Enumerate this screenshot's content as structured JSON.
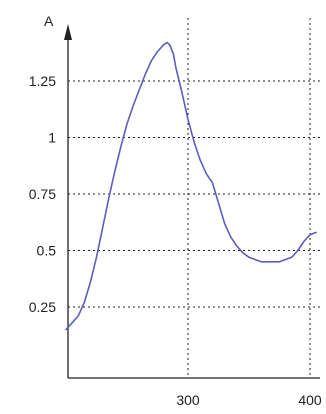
{
  "chart_data": {
    "type": "line",
    "title": "",
    "xlabel": "",
    "ylabel": "A",
    "xlim": [
      200,
      405
    ],
    "ylim": [
      0,
      1.55
    ],
    "x_ticks": [
      300,
      400
    ],
    "x_tick_labels": [
      "300",
      "400"
    ],
    "y_ticks": [
      0.25,
      0.5,
      0.75,
      1,
      1.25
    ],
    "y_tick_labels": [
      "0.25",
      "0.5",
      "0.75",
      "1",
      "1.25"
    ],
    "grid": true,
    "grid_style": "dotted",
    "colors": {
      "line": "#5a5fc0",
      "axis": "#222222",
      "grid": "#222222"
    },
    "series": [
      {
        "name": "",
        "x": [
          200,
          205,
          210,
          215,
          220,
          225,
          230,
          235,
          240,
          245,
          250,
          255,
          260,
          265,
          270,
          275,
          280,
          283,
          285,
          288,
          290,
          295,
          300,
          305,
          310,
          315,
          320,
          325,
          330,
          335,
          340,
          345,
          350,
          355,
          360,
          365,
          370,
          375,
          380,
          385,
          390,
          395,
          400,
          405
        ],
        "y": [
          0.15,
          0.18,
          0.21,
          0.27,
          0.36,
          0.47,
          0.6,
          0.73,
          0.85,
          0.96,
          1.06,
          1.14,
          1.21,
          1.28,
          1.34,
          1.38,
          1.41,
          1.42,
          1.41,
          1.37,
          1.31,
          1.2,
          1.08,
          0.98,
          0.9,
          0.84,
          0.8,
          0.71,
          0.62,
          0.56,
          0.52,
          0.49,
          0.47,
          0.46,
          0.45,
          0.45,
          0.45,
          0.45,
          0.46,
          0.47,
          0.5,
          0.54,
          0.57,
          0.58
        ]
      }
    ]
  }
}
